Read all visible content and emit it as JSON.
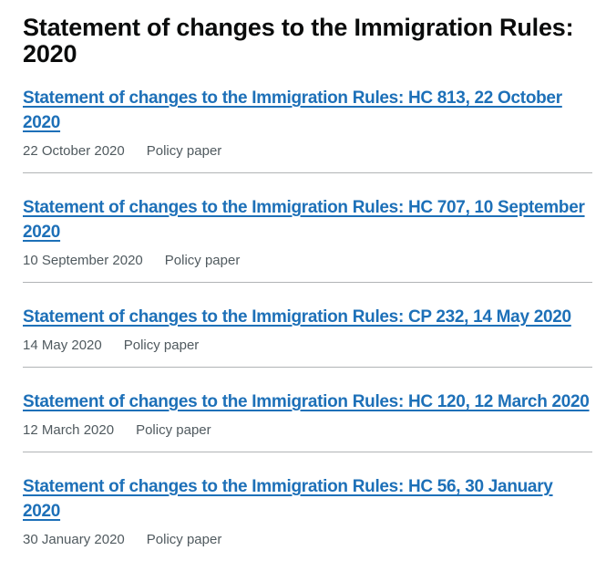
{
  "page": {
    "title": "Statement of changes to the Immigration Rules: 2020"
  },
  "colors": {
    "heading_text": "#0b0c0c",
    "link": "#1d70b8",
    "meta_text": "#505a5f",
    "separator": "#b1b4b6",
    "background": "#ffffff"
  },
  "documents": [
    {
      "title": "Statement of changes to the Immigration Rules: HC 813, 22 October 2020",
      "date": "22 October 2020",
      "type": "Policy paper"
    },
    {
      "title": "Statement of changes to the Immigration Rules: HC 707, 10 September 2020",
      "date": "10 September 2020",
      "type": "Policy paper"
    },
    {
      "title": "Statement of changes to the Immigration Rules: CP 232, 14 May 2020",
      "date": "14 May 2020",
      "type": "Policy paper"
    },
    {
      "title": "Statement of changes to the Immigration Rules: HC 120, 12 March 2020",
      "date": "12 March 2020",
      "type": "Policy paper"
    },
    {
      "title": "Statement of changes to the Immigration Rules: HC 56, 30 January 2020",
      "date": "30 January 2020",
      "type": "Policy paper"
    }
  ]
}
